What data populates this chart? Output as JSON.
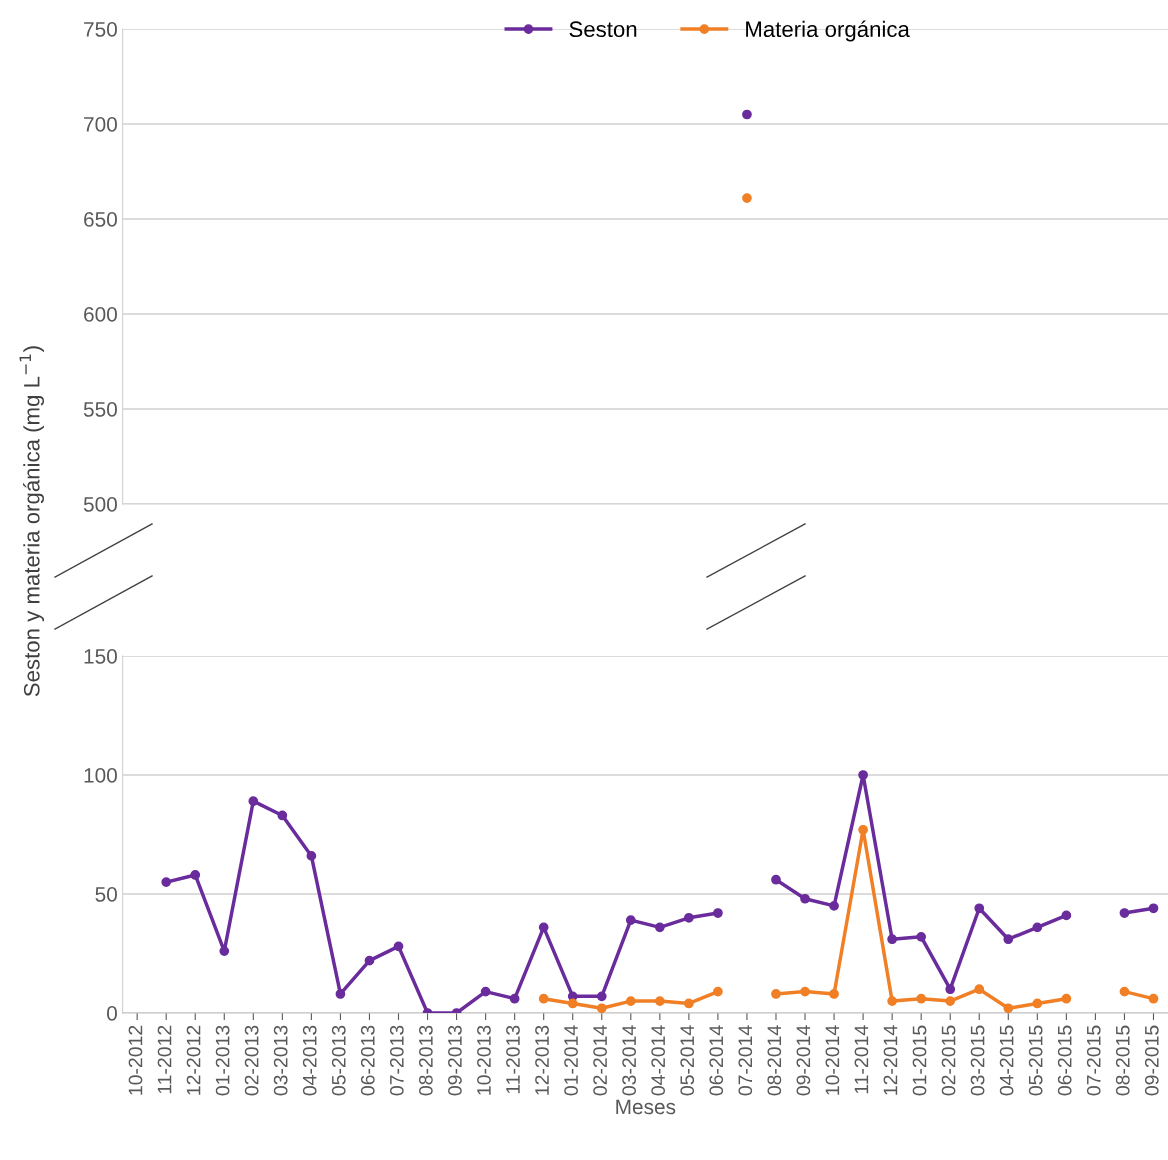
{
  "chart_data": [
    {
      "type": "line",
      "categories": [
        null,
        null,
        null,
        null,
        null,
        null,
        null,
        null,
        null,
        null,
        null,
        null,
        null,
        null,
        null,
        null,
        null,
        null,
        null,
        null,
        null,
        null,
        null,
        null,
        null,
        null,
        null,
        null,
        null,
        null,
        null,
        null,
        null,
        null,
        null,
        null
      ],
      "series": [
        {
          "name": "Seston",
          "color": "#6a2c9c",
          "values": [
            null,
            null,
            null,
            null,
            null,
            null,
            null,
            null,
            null,
            null,
            null,
            null,
            null,
            null,
            null,
            null,
            null,
            null,
            null,
            null,
            null,
            705,
            null,
            null,
            null,
            null,
            null,
            null,
            null,
            null,
            null,
            null,
            null,
            null,
            null,
            null
          ]
        },
        {
          "name": "Materia orgánica",
          "color": "#f07f25",
          "values": [
            null,
            null,
            null,
            null,
            null,
            null,
            null,
            null,
            null,
            null,
            null,
            null,
            null,
            null,
            null,
            null,
            null,
            null,
            null,
            null,
            null,
            661,
            null,
            null,
            null,
            null,
            null,
            null,
            null,
            null,
            null,
            null,
            null,
            null,
            null,
            null
          ]
        }
      ],
      "ylim": [
        500,
        750
      ],
      "yticks": [
        500,
        550,
        600,
        650,
        700,
        750
      ],
      "grid": "y",
      "legend": "top",
      "tick_labels": "y",
      "marker": "circle",
      "line_style": "solid"
    },
    {
      "type": "line",
      "xlabel": "Meses",
      "ylabel": "Seston y materia orgánica (mg L$^{−1}$)",
      "categories": [
        "10-2012",
        "11-2012",
        "12-2012",
        "01-2013",
        "02-2013",
        "03-2013",
        "04-2013",
        "05-2013",
        "06-2013",
        "07-2013",
        "08-2013",
        "09-2013",
        "10-2013",
        "11-2013",
        "12-2013",
        "01-2014",
        "02-2014",
        "03-2014",
        "04-2014",
        "05-2014",
        "06-2014",
        "07-2014",
        "08-2014",
        "09-2014",
        "10-2014",
        "11-2014",
        "12-2014",
        "01-2015",
        "02-2015",
        "03-2015",
        "04-2015",
        "05-2015",
        "06-2015",
        "07-2015",
        "08-2015",
        "09-2015"
      ],
      "series": [
        {
          "color": "#6a2c9c",
          "values": [
            null,
            55,
            58,
            26,
            89,
            83,
            66,
            8,
            22,
            28,
            0,
            0,
            9,
            6,
            36,
            7,
            7,
            39,
            36,
            40,
            42,
            null,
            56,
            48,
            45,
            100,
            31,
            32,
            10,
            44,
            31,
            36,
            41,
            null,
            42,
            44
          ]
        },
        {
          "color": "#f07f25",
          "values": [
            null,
            null,
            null,
            null,
            null,
            null,
            null,
            null,
            null,
            null,
            null,
            null,
            null,
            null,
            6,
            4,
            2,
            5,
            5,
            4,
            9,
            null,
            8,
            9,
            8,
            77,
            5,
            6,
            5,
            10,
            2,
            4,
            6,
            null,
            9,
            6
          ]
        }
      ],
      "ylim": [
        0,
        150
      ],
      "yticks": [
        0,
        50,
        100,
        150
      ],
      "grid": "y",
      "marker": "circle",
      "line_style": "solid"
    }
  ]
}
